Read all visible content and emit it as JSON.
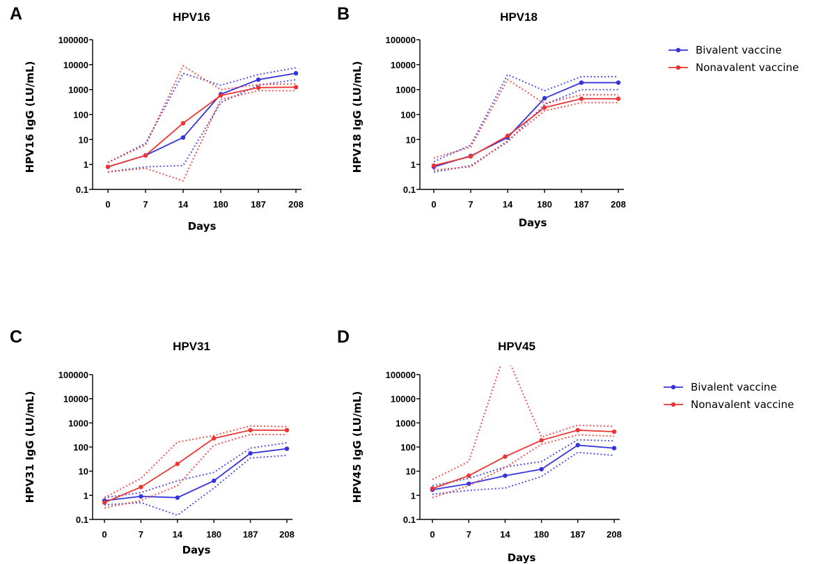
{
  "figure": {
    "colors": {
      "bivalent": "#3333dd",
      "nonavalent": "#ee3333"
    }
  },
  "legend": {
    "entries": [
      {
        "label": "Bivalent vaccine",
        "color": "#3333dd"
      },
      {
        "label": "Nonavalent vaccine",
        "color": "#ee3333"
      }
    ]
  },
  "chart_data": [
    {
      "panel": "A",
      "type": "line",
      "title": "HPV16",
      "xlabel": "Days",
      "ylabel": "HPV16 IgG (LU/mL)",
      "yscale": "log",
      "ylim": [
        0.1,
        100000
      ],
      "yticks": [
        "100000",
        "10000",
        "1000",
        "100",
        "10",
        "1",
        "0.1"
      ],
      "categories": [
        "0",
        "7",
        "14",
        "180",
        "187",
        "208"
      ],
      "series": [
        {
          "name": "Bivalent vaccine",
          "values": [
            0.8,
            2.3,
            12,
            650,
            2500,
            4500
          ],
          "ci_low": [
            0.5,
            0.8,
            0.9,
            300,
            1500,
            2500
          ],
          "ci_high": [
            1.2,
            7,
            4500,
            1500,
            4000,
            7500
          ]
        },
        {
          "name": "Nonavalent vaccine",
          "values": [
            0.8,
            2.3,
            45,
            580,
            1200,
            1250
          ],
          "ci_low": [
            0.5,
            0.7,
            0.22,
            400,
            900,
            900
          ],
          "ci_high": [
            1.2,
            6,
            9000,
            1000,
            1600,
            1700
          ]
        }
      ]
    },
    {
      "panel": "B",
      "type": "line",
      "title": "HPV18",
      "xlabel": "Days",
      "ylabel": "HPV18 IgG (LU/mL)",
      "yscale": "log",
      "ylim": [
        0.1,
        100000
      ],
      "yticks": [
        "100000",
        "10000",
        "1000",
        "100",
        "10",
        "1",
        "0.1"
      ],
      "categories": [
        "0",
        "7",
        "14",
        "180",
        "187",
        "208"
      ],
      "series": [
        {
          "name": "Bivalent vaccine",
          "values": [
            0.8,
            2.2,
            12,
            450,
            1900,
            1900
          ],
          "ci_low": [
            0.5,
            0.9,
            8,
            250,
            1000,
            1000
          ],
          "ci_high": [
            1.3,
            6,
            4000,
            900,
            3300,
            3300
          ]
        },
        {
          "name": "Nonavalent vaccine",
          "values": [
            0.9,
            2.1,
            14,
            190,
            430,
            430
          ],
          "ci_low": [
            0.6,
            0.8,
            9,
            140,
            300,
            300
          ],
          "ci_high": [
            1.8,
            5,
            2500,
            280,
            620,
            620
          ]
        }
      ]
    },
    {
      "panel": "C",
      "type": "line",
      "title": "HPV31",
      "xlabel": "Days",
      "ylabel": "HPV31 IgG (LU/mL)",
      "yscale": "log",
      "ylim": [
        0.1,
        100000
      ],
      "yticks": [
        "100000",
        "10000",
        "1000",
        "100",
        "10",
        "1",
        "0.1"
      ],
      "categories": [
        "0",
        "7",
        "14",
        "180",
        "187",
        "208"
      ],
      "series": [
        {
          "name": "Bivalent vaccine",
          "values": [
            0.6,
            0.9,
            0.8,
            4,
            55,
            85
          ],
          "ci_low": [
            0.4,
            0.5,
            0.15,
            2,
            35,
            45
          ],
          "ci_high": [
            0.8,
            1.3,
            4,
            9,
            90,
            150
          ]
        },
        {
          "name": "Nonavalent vaccine",
          "values": [
            0.5,
            2.2,
            20,
            230,
            500,
            500
          ],
          "ci_low": [
            0.3,
            0.6,
            2.5,
            120,
            330,
            330
          ],
          "ci_high": [
            0.8,
            5,
            160,
            300,
            750,
            700
          ]
        }
      ]
    },
    {
      "panel": "D",
      "type": "line",
      "title": "HPV45",
      "xlabel": "Days",
      "ylabel": "HPV45 IgG (LU/mL)",
      "yscale": "log",
      "ylim": [
        0.1,
        100000
      ],
      "yticks": [
        "100000",
        "10000",
        "1000",
        "100",
        "10",
        "1",
        "0.1"
      ],
      "categories": [
        "0",
        "7",
        "14",
        "180",
        "187",
        "208"
      ],
      "series": [
        {
          "name": "Bivalent vaccine",
          "values": [
            1.7,
            3,
            6.5,
            12,
            120,
            90
          ],
          "ci_low": [
            1.1,
            1.6,
            2,
            6,
            60,
            45
          ],
          "ci_high": [
            2.5,
            5,
            15,
            25,
            200,
            180
          ]
        },
        {
          "name": "Nonavalent vaccine",
          "values": [
            1.9,
            6.5,
            40,
            190,
            500,
            430
          ],
          "ci_low": [
            0.8,
            2.5,
            14,
            130,
            320,
            280
          ],
          "ci_high": [
            4.5,
            25,
            900000,
            260,
            800,
            720
          ]
        }
      ]
    }
  ]
}
